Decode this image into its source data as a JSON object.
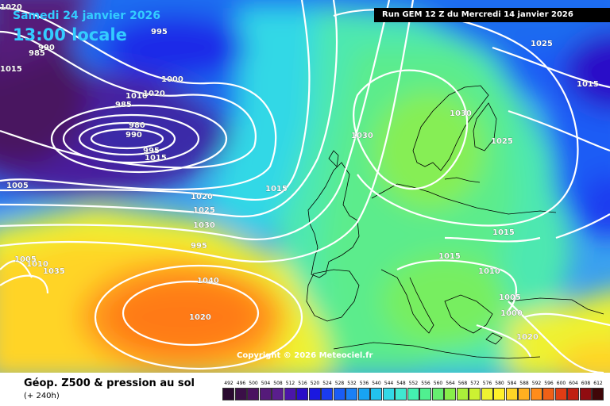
{
  "header": {
    "valid_date": "Samedi 24 janvier 2026",
    "valid_time": "13:00 locale",
    "run_info": "Run GEM 12 Z du Mercredi 14 janvier 2026"
  },
  "copyright": "Copyright © 2026 Meteociel.fr",
  "legend": {
    "title": "Géop. Z500 & pression au sol",
    "subtitle": "(+ 240h)",
    "scale_values": [
      "492",
      "496",
      "500",
      "504",
      "508",
      "512",
      "516",
      "520",
      "524",
      "528",
      "532",
      "536",
      "540",
      "544",
      "548",
      "552",
      "556",
      "560",
      "564",
      "568",
      "572",
      "576",
      "580",
      "584",
      "588",
      "592",
      "596",
      "600",
      "604",
      "608",
      "612"
    ],
    "scale_colors": [
      "#2a0a30",
      "#3b0f48",
      "#4a1260",
      "#551a7a",
      "#5a1e8e",
      "#4b16a8",
      "#2a0ec8",
      "#1a18e0",
      "#1a3cf0",
      "#1a5cf5",
      "#1a80f5",
      "#18a4f2",
      "#22c2ee",
      "#33d8e6",
      "#40e8d0",
      "#44f0b0",
      "#50f090",
      "#66ee70",
      "#88ee4a",
      "#aaf03a",
      "#ccf232",
      "#eef232",
      "#fff02a",
      "#ffd426",
      "#ffb020",
      "#ff8c1a",
      "#f06016",
      "#e03c14",
      "#c02012",
      "#900c10",
      "#400608"
    ]
  },
  "isobar_labels": [
    "1020",
    "995",
    "990",
    "985",
    "1015",
    "1000",
    "1010",
    "1020",
    "985",
    "980",
    "990",
    "995",
    "1015",
    "1005",
    "1015",
    "1020",
    "1025",
    "1030",
    "995",
    "1005",
    "1010",
    "1035",
    "1040",
    "1020",
    "1030",
    "1030",
    "1025",
    "1025",
    "1015",
    "1015",
    "1010",
    "1005",
    "1000",
    "1020",
    "1015"
  ]
}
